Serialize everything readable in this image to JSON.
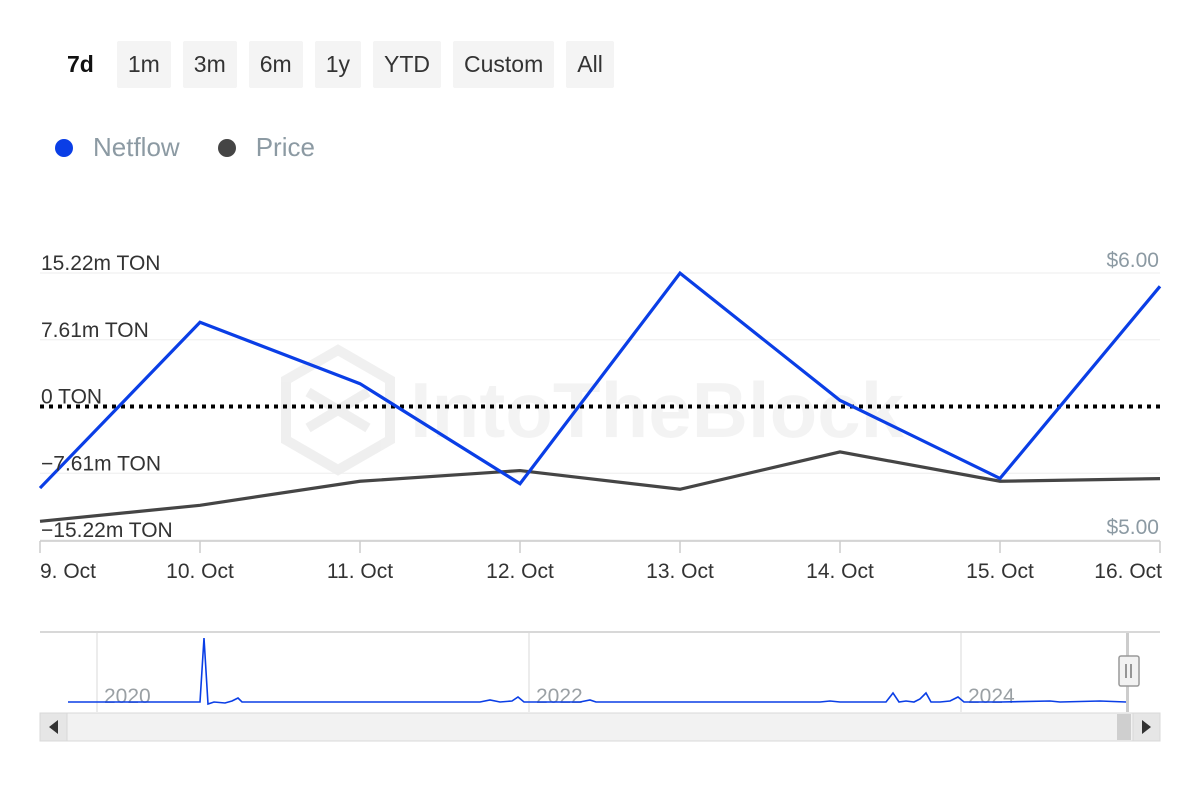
{
  "range_buttons": [
    {
      "label": "7d",
      "active": true
    },
    {
      "label": "1m",
      "active": false
    },
    {
      "label": "3m",
      "active": false
    },
    {
      "label": "6m",
      "active": false
    },
    {
      "label": "1y",
      "active": false
    },
    {
      "label": "YTD",
      "active": false
    },
    {
      "label": "Custom",
      "active": false
    },
    {
      "label": "All",
      "active": false
    }
  ],
  "legend": [
    {
      "label": "Netflow",
      "color": "#0a3ee6"
    },
    {
      "label": "Price",
      "color": "#454545"
    }
  ],
  "watermark": "IntoTheBlock",
  "chart_data": {
    "type": "line",
    "categories": [
      "9. Oct",
      "10. Oct",
      "11. Oct",
      "12. Oct",
      "13. Oct",
      "14. Oct",
      "15. Oct",
      "16. Oct"
    ],
    "series": [
      {
        "name": "Netflow",
        "axis": "left",
        "color": "#0a3ee6",
        "values": [
          -9.3,
          9.6,
          2.6,
          -8.8,
          15.2,
          0.7,
          -8.2,
          13.7
        ]
      },
      {
        "name": "Price",
        "axis": "right",
        "color": "#454545",
        "values": [
          5.07,
          5.13,
          5.22,
          5.26,
          5.19,
          5.33,
          5.22,
          5.23
        ]
      }
    ],
    "y_left": {
      "ticks": [
        15.22,
        7.61,
        0,
        -7.61,
        -15.22
      ],
      "tick_labels": [
        "15.22m TON",
        "7.61m TON",
        "0 TON",
        "−7.61m TON",
        "−15.22m TON"
      ],
      "range": [
        -15.22,
        15.22
      ]
    },
    "y_right": {
      "ticks": [
        6.0,
        5.0
      ],
      "tick_labels": [
        "$6.00",
        "$5.00"
      ],
      "range": [
        5.0,
        6.0
      ]
    },
    "zero_line": "dotted",
    "grid": true,
    "legend_position": "top-left"
  },
  "navigator": {
    "year_labels": [
      "2020",
      "2022",
      "2024"
    ],
    "scroll_left": "◀",
    "scroll_right": "▶"
  }
}
